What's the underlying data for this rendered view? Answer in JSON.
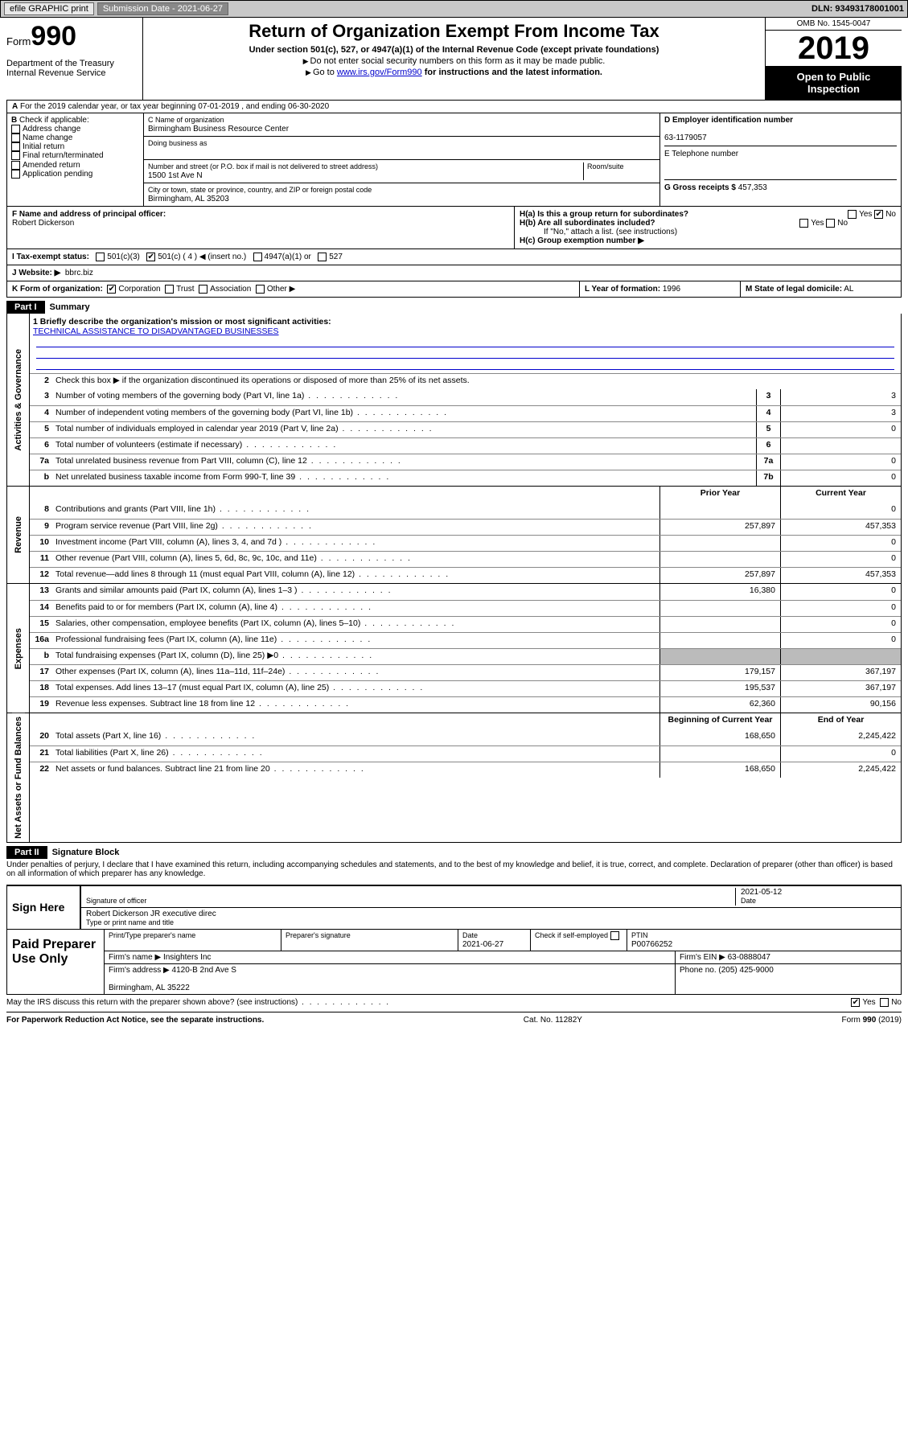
{
  "topbar": {
    "efile": "efile GRAPHIC print",
    "submission_label": "Submission Date - ",
    "submission_date": "2021-06-27",
    "dln_label": "DLN: ",
    "dln": "93493178001001"
  },
  "header": {
    "form_prefix": "Form",
    "form_num": "990",
    "dept": "Department of the Treasury\nInternal Revenue Service",
    "title": "Return of Organization Exempt From Income Tax",
    "subtitle": "Under section 501(c), 527, or 4947(a)(1) of the Internal Revenue Code (except private foundations)",
    "note1": "Do not enter social security numbers on this form as it may be made public.",
    "note2_pre": "Go to ",
    "note2_link": "www.irs.gov/Form990",
    "note2_post": " for instructions and the latest information.",
    "omb": "OMB No. 1545-0047",
    "year": "2019",
    "open1": "Open to Public",
    "open2": "Inspection"
  },
  "a_line": "For the 2019 calendar year, or tax year beginning 07-01-2019   , and ending 06-30-2020",
  "b": {
    "label": "Check if applicable:",
    "opts": [
      "Address change",
      "Name change",
      "Initial return",
      "Final return/terminated",
      "Amended return",
      "Application pending"
    ]
  },
  "c": {
    "name_lbl": "C Name of organization",
    "name": "Birmingham Business Resource Center",
    "dba_lbl": "Doing business as",
    "street_lbl": "Number and street (or P.O. box if mail is not delivered to street address)",
    "room_lbl": "Room/suite",
    "street": "1500 1st Ave N",
    "city_lbl": "City or town, state or province, country, and ZIP or foreign postal code",
    "city": "Birmingham, AL  35203"
  },
  "d": {
    "lbl": "D Employer identification number",
    "val": "63-1179057"
  },
  "e": {
    "lbl": "E Telephone number",
    "val": ""
  },
  "g": {
    "lbl": "G Gross receipts $",
    "val": "457,353"
  },
  "f": {
    "lbl": "F  Name and address of principal officer:",
    "val": "Robert Dickerson"
  },
  "h": {
    "a_lbl": "H(a)  Is this a group return for subordinates?",
    "b_lbl": "H(b)  Are all subordinates included?",
    "b_note": "If \"No,\" attach a list. (see instructions)",
    "c_lbl": "H(c)  Group exemption number ▶",
    "yes": "Yes",
    "no": "No"
  },
  "i": {
    "lbl": "I   Tax-exempt status:",
    "o1": "501(c)(3)",
    "o2": "501(c) ( 4 ) ◀ (insert no.)",
    "o3": "4947(a)(1) or",
    "o4": "527"
  },
  "j": {
    "lbl": "J   Website: ▶",
    "val": "bbrc.biz"
  },
  "k": {
    "lbl": "K Form of organization:",
    "o1": "Corporation",
    "o2": "Trust",
    "o3": "Association",
    "o4": "Other ▶"
  },
  "l": {
    "lbl": "L Year of formation:",
    "val": "1996"
  },
  "m": {
    "lbl": "M State of legal domicile:",
    "val": "AL"
  },
  "part1": {
    "head": "Part I",
    "title": "Summary"
  },
  "summary": {
    "q1_lbl": "1   Briefly describe the organization's mission or most significant activities:",
    "q1_val": "TECHNICAL ASSISTANCE TO DISADVANTAGED BUSINESSES",
    "q2": "Check this box ▶     if the organization discontinued its operations or disposed of more than 25% of its net assets.",
    "rows": [
      {
        "n": "3",
        "d": "Number of voting members of the governing body (Part VI, line 1a)",
        "b": "3",
        "v": "3"
      },
      {
        "n": "4",
        "d": "Number of independent voting members of the governing body (Part VI, line 1b)",
        "b": "4",
        "v": "3"
      },
      {
        "n": "5",
        "d": "Total number of individuals employed in calendar year 2019 (Part V, line 2a)",
        "b": "5",
        "v": "0"
      },
      {
        "n": "6",
        "d": "Total number of volunteers (estimate if necessary)",
        "b": "6",
        "v": ""
      },
      {
        "n": "7a",
        "d": "Total unrelated business revenue from Part VIII, column (C), line 12",
        "b": "7a",
        "v": "0"
      },
      {
        "n": "b",
        "d": "Net unrelated business taxable income from Form 990-T, line 39",
        "b": "7b",
        "v": "0"
      }
    ]
  },
  "rev": {
    "head_prior": "Prior Year",
    "head_curr": "Current Year",
    "rows": [
      {
        "n": "8",
        "d": "Contributions and grants (Part VIII, line 1h)",
        "p": "",
        "c": "0"
      },
      {
        "n": "9",
        "d": "Program service revenue (Part VIII, line 2g)",
        "p": "257,897",
        "c": "457,353"
      },
      {
        "n": "10",
        "d": "Investment income (Part VIII, column (A), lines 3, 4, and 7d )",
        "p": "",
        "c": "0"
      },
      {
        "n": "11",
        "d": "Other revenue (Part VIII, column (A), lines 5, 6d, 8c, 9c, 10c, and 11e)",
        "p": "",
        "c": "0"
      },
      {
        "n": "12",
        "d": "Total revenue—add lines 8 through 11 (must equal Part VIII, column (A), line 12)",
        "p": "257,897",
        "c": "457,353"
      }
    ]
  },
  "exp": {
    "rows": [
      {
        "n": "13",
        "d": "Grants and similar amounts paid (Part IX, column (A), lines 1–3 )",
        "p": "16,380",
        "c": "0"
      },
      {
        "n": "14",
        "d": "Benefits paid to or for members (Part IX, column (A), line 4)",
        "p": "",
        "c": "0"
      },
      {
        "n": "15",
        "d": "Salaries, other compensation, employee benefits (Part IX, column (A), lines 5–10)",
        "p": "",
        "c": "0"
      },
      {
        "n": "16a",
        "d": "Professional fundraising fees (Part IX, column (A), line 11e)",
        "p": "",
        "c": "0"
      },
      {
        "n": "b",
        "d": "Total fundraising expenses (Part IX, column (D), line 25) ▶0",
        "p": "shade",
        "c": "shade"
      },
      {
        "n": "17",
        "d": "Other expenses (Part IX, column (A), lines 11a–11d, 11f–24e)",
        "p": "179,157",
        "c": "367,197"
      },
      {
        "n": "18",
        "d": "Total expenses. Add lines 13–17 (must equal Part IX, column (A), line 25)",
        "p": "195,537",
        "c": "367,197"
      },
      {
        "n": "19",
        "d": "Revenue less expenses. Subtract line 18 from line 12",
        "p": "62,360",
        "c": "90,156"
      }
    ]
  },
  "net": {
    "head_beg": "Beginning of Current Year",
    "head_end": "End of Year",
    "rows": [
      {
        "n": "20",
        "d": "Total assets (Part X, line 16)",
        "p": "168,650",
        "c": "2,245,422"
      },
      {
        "n": "21",
        "d": "Total liabilities (Part X, line 26)",
        "p": "",
        "c": "0"
      },
      {
        "n": "22",
        "d": "Net assets or fund balances. Subtract line 21 from line 20",
        "p": "168,650",
        "c": "2,245,422"
      }
    ]
  },
  "part2": {
    "head": "Part II",
    "title": "Signature Block"
  },
  "sig": {
    "decl": "Under penalties of perjury, I declare that I have examined this return, including accompanying schedules and statements, and to the best of my knowledge and belief, it is true, correct, and complete. Declaration of preparer (other than officer) is based on all information of which preparer has any knowledge.",
    "sign_here": "Sign Here",
    "sig_officer": "Signature of officer",
    "date_lbl": "Date",
    "date": "2021-05-12",
    "name": "Robert Dickerson JR  executive direc",
    "type_lbl": "Type or print name and title",
    "paid": "Paid Preparer Use Only",
    "pp_name_lbl": "Print/Type preparer's name",
    "pp_sig_lbl": "Preparer's signature",
    "pp_date_lbl": "Date",
    "pp_date": "2021-06-27",
    "pp_check": "Check      if self-employed",
    "ptin_lbl": "PTIN",
    "ptin": "P00766252",
    "firm_name_lbl": "Firm's name   ▶",
    "firm_name": "Insighters Inc",
    "firm_ein_lbl": "Firm's EIN ▶",
    "firm_ein": "63-0888047",
    "firm_addr_lbl": "Firm's address ▶",
    "firm_addr1": "4120-B 2nd Ave S",
    "firm_addr2": "Birmingham, AL  35222",
    "phone_lbl": "Phone no.",
    "phone": "(205) 425-9000",
    "discuss": "May the IRS discuss this return with the preparer shown above? (see instructions)"
  },
  "footer": {
    "left": "For Paperwork Reduction Act Notice, see the separate instructions.",
    "mid": "Cat. No. 11282Y",
    "right": "Form 990 (2019)"
  },
  "vlabels": {
    "gov": "Activities & Governance",
    "rev": "Revenue",
    "exp": "Expenses",
    "net": "Net Assets or Fund Balances"
  }
}
